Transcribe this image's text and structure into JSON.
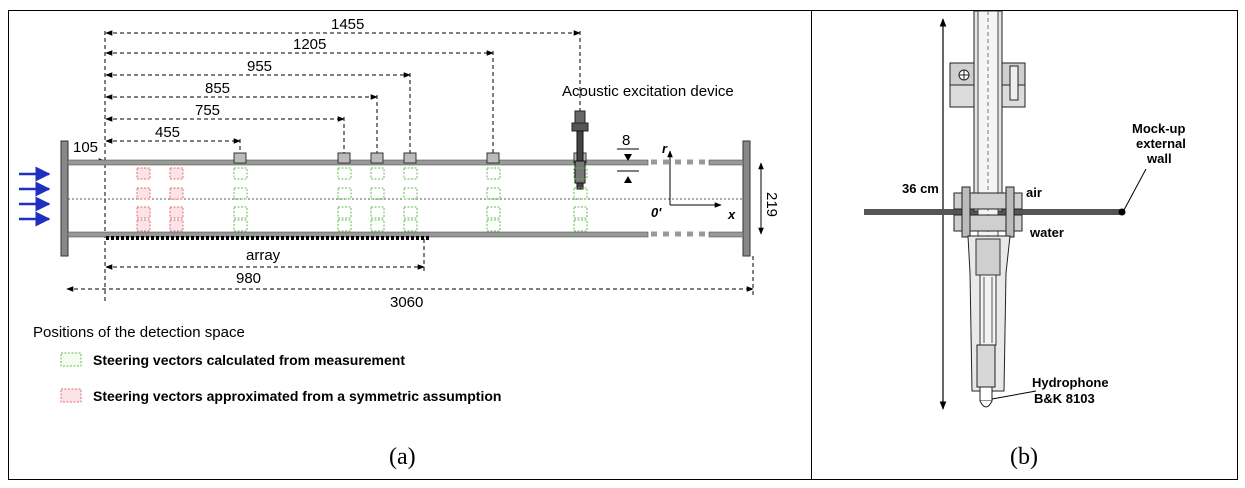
{
  "panel_a": {
    "dimensions": [
      "1455",
      "1205",
      "955",
      "855",
      "755",
      "455",
      "105",
      "980",
      "3060",
      "219",
      "8"
    ],
    "labels": {
      "device": "Acoustic excitation device",
      "array": "array",
      "r_axis": "r",
      "x_axis": "x",
      "origin": "0'"
    },
    "legend": {
      "title": "Positions of the detection space",
      "green": "Steering vectors calculated from measurement",
      "red": "Steering vectors approximated from a symmetric assumption"
    },
    "caption": "(a)",
    "colors": {
      "green": "#5fbf4f",
      "red": "#e06b7b",
      "flow_arrow": "#1f2fbf"
    }
  },
  "panel_b": {
    "labels": {
      "length": "36 cm",
      "air": "air",
      "water": "water",
      "wall": [
        "Mock-up",
        "external",
        "wall"
      ],
      "hydrophone": [
        "Hydrophone",
        "B&K 8103"
      ]
    },
    "caption": "(b)"
  }
}
